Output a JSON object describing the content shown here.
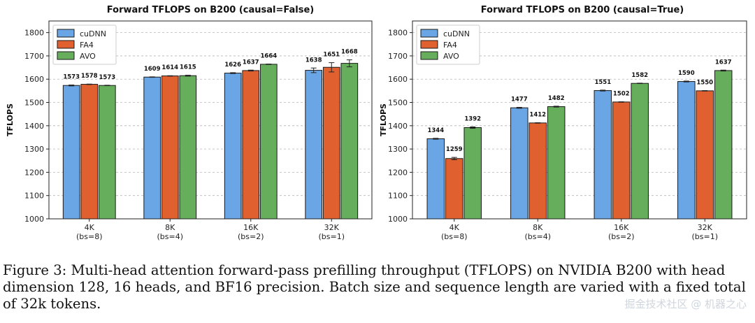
{
  "chart_data": [
    {
      "type": "bar",
      "title": "Forward TFLOPS on B200 (causal=False)",
      "ylabel": "TFLOPS",
      "xlabel": "",
      "ylim": [
        1000,
        1850
      ],
      "yticks": [
        1000,
        1100,
        1200,
        1300,
        1400,
        1500,
        1600,
        1700,
        1800
      ],
      "grid": true,
      "legend": "top-left",
      "categories": [
        "4K\n(bs=8)",
        "8K\n(bs=4)",
        "16K\n(bs=2)",
        "32K\n(bs=1)"
      ],
      "series": [
        {
          "name": "cuDNN",
          "color": "#6aa6e6",
          "values": [
            1573,
            1609,
            1626,
            1638
          ],
          "errors": [
            2,
            1,
            2,
            10
          ]
        },
        {
          "name": "FA4",
          "color": "#e06030",
          "values": [
            1578,
            1614,
            1637,
            1651
          ],
          "errors": [
            1,
            1,
            2,
            20
          ]
        },
        {
          "name": "AVO",
          "color": "#66ad5c",
          "values": [
            1573,
            1615,
            1664,
            1668
          ],
          "errors": [
            1,
            2,
            1,
            15
          ]
        }
      ]
    },
    {
      "type": "bar",
      "title": "Forward TFLOPS on B200 (causal=True)",
      "ylabel": "TFLOPS",
      "xlabel": "",
      "ylim": [
        1000,
        1850
      ],
      "yticks": [
        1000,
        1100,
        1200,
        1300,
        1400,
        1500,
        1600,
        1700,
        1800
      ],
      "grid": true,
      "legend": "top-left",
      "categories": [
        "4K\n(bs=8)",
        "8K\n(bs=4)",
        "16K\n(bs=2)",
        "32K\n(bs=1)"
      ],
      "series": [
        {
          "name": "cuDNN",
          "color": "#6aa6e6",
          "values": [
            1344,
            1477,
            1551,
            1590
          ],
          "errors": [
            2,
            2,
            2,
            2
          ]
        },
        {
          "name": "FA4",
          "color": "#e06030",
          "values": [
            1259,
            1412,
            1502,
            1550
          ],
          "errors": [
            5,
            1,
            1,
            1
          ]
        },
        {
          "name": "AVO",
          "color": "#66ad5c",
          "values": [
            1392,
            1482,
            1582,
            1637
          ],
          "errors": [
            3,
            2,
            1,
            2
          ]
        }
      ]
    }
  ],
  "caption": "Figure 3: Multi-head attention forward-pass prefilling throughput (TFLOPS) on NVIDIA B200 with head dimension 128, 16 heads, and BF16 precision. Batch size and sequence length are varied with a fixed total of 32k tokens.",
  "watermark": "掘金技术社区 @ 机器之心"
}
